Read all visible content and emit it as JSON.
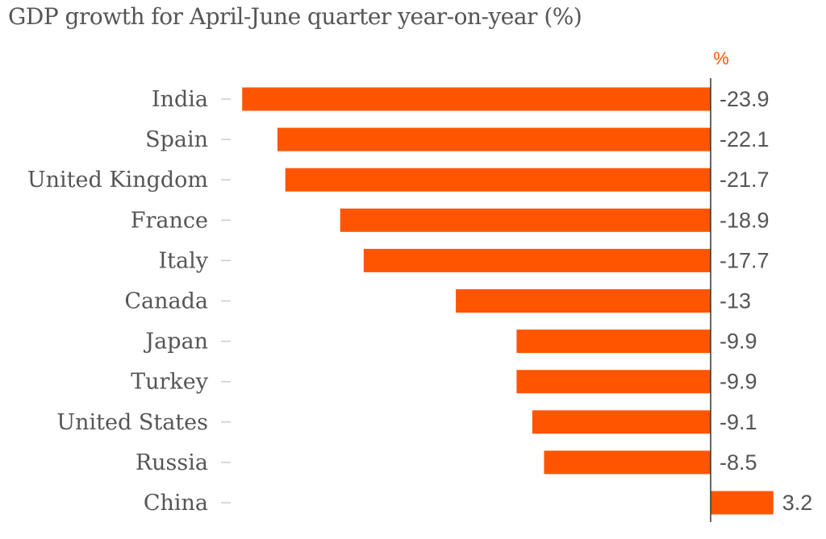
{
  "chart_data": {
    "type": "bar",
    "orientation": "horizontal",
    "title": "GDP growth for April-June quarter year-on-year (%)",
    "unit_label": "%",
    "categories": [
      "India",
      "Spain",
      "United Kingdom",
      "France",
      "Italy",
      "Canada",
      "Japan",
      "Turkey",
      "United States",
      "Russia",
      "China"
    ],
    "values": [
      -23.9,
      -22.1,
      -21.7,
      -18.9,
      -17.7,
      -13,
      -9.9,
      -9.9,
      -9.1,
      -8.5,
      3.2
    ],
    "value_labels": [
      "-23.9",
      "-22.1",
      "-21.7",
      "-18.9",
      "-17.7",
      "-13",
      "-9.9",
      "-9.9",
      "-9.1",
      "-8.5",
      "3.2"
    ],
    "xlim": [
      -26,
      3.5
    ],
    "grid": false,
    "legend": "none",
    "colors": {
      "bar": "#ff5500",
      "axis": "#333333",
      "text": "#555555",
      "unit": "#ff5500",
      "tick": "#cccccc"
    }
  }
}
